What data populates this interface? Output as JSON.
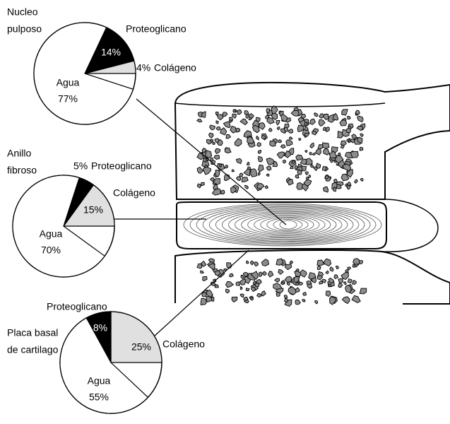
{
  "chart_data": [
    {
      "type": "pie",
      "title": [
        "Nucleo",
        "pulposo"
      ],
      "categories": [
        "Colágeno",
        "Proteoglicano",
        "Agua"
      ],
      "values": [
        4,
        14,
        77
      ],
      "value_labels": [
        "4%",
        "14%",
        "77%"
      ],
      "colors": [
        "#e0e0e0",
        "#000000",
        "#ffffff"
      ]
    },
    {
      "type": "pie",
      "title": [
        "Anillo",
        "fibroso"
      ],
      "categories": [
        "Colágeno",
        "Proteoglicano",
        "Agua"
      ],
      "values": [
        15,
        5,
        70
      ],
      "value_labels": [
        "15%",
        "5%",
        "70%"
      ],
      "colors": [
        "#e0e0e0",
        "#000000",
        "#ffffff"
      ]
    },
    {
      "type": "pie",
      "title": [
        "Placa basal",
        "de cartilago"
      ],
      "categories": [
        "Colágeno",
        "Proteoglicano",
        "Agua"
      ],
      "values": [
        25,
        8,
        55
      ],
      "value_labels": [
        "25%",
        "8%",
        "55%"
      ],
      "colors": [
        "#e0e0e0",
        "#000000",
        "#ffffff"
      ]
    }
  ]
}
